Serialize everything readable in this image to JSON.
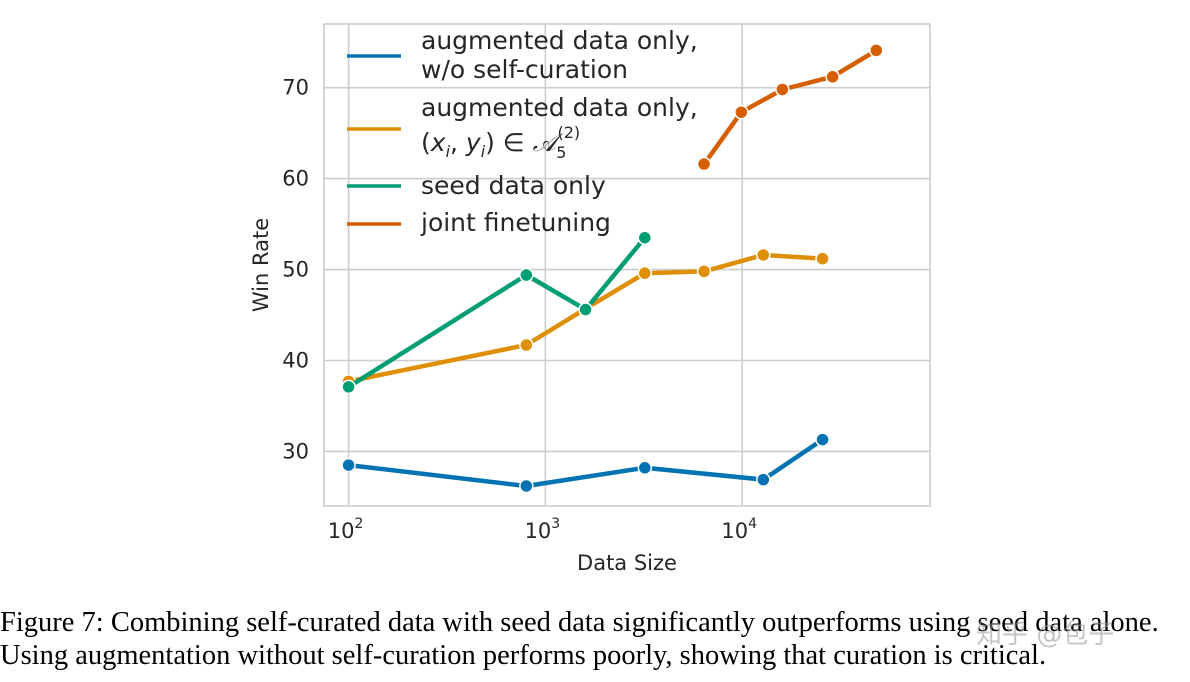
{
  "chart_data": {
    "type": "line",
    "xlabel": "Data Size",
    "ylabel": "Win Rate",
    "xscale": "log",
    "xlim": [
      75,
      90000
    ],
    "ylim": [
      24,
      77
    ],
    "xticks": [
      {
        "value": 100,
        "base": "10",
        "exp": "2"
      },
      {
        "value": 1000,
        "base": "10",
        "exp": "3"
      },
      {
        "value": 10000,
        "base": "10",
        "exp": "4"
      }
    ],
    "yticks": [
      30,
      40,
      50,
      60,
      70
    ],
    "grid": true,
    "legend_position": "top-left",
    "series": [
      {
        "name": "augmented data only, w/o self-curation",
        "legend_lines": [
          "augmented data only,",
          "w/o self-curation"
        ],
        "color": "#0173b2",
        "x": [
          100,
          800,
          3200,
          12800,
          25600
        ],
        "y": [
          28.5,
          26.2,
          28.2,
          26.9,
          31.3
        ]
      },
      {
        "name": "augmented data only, (x_i, y_i) ∈ A_5^(2)",
        "legend_lines": [
          "augmented data only,"
        ],
        "legend_math": {
          "open": "(",
          "x": "x",
          "i1": "i",
          "comma": ", ",
          "y": "y",
          "i2": "i",
          "close": ") ∈ ",
          "A": "𝒜",
          "sub": "5",
          "sup": "(2)"
        },
        "color": "#de8f05",
        "x": [
          100,
          800,
          1600,
          3200,
          6400,
          12800,
          25600
        ],
        "y": [
          37.7,
          41.7,
          45.7,
          49.6,
          49.8,
          51.6,
          51.2
        ]
      },
      {
        "name": "seed data only",
        "legend_lines": [
          "seed data only"
        ],
        "color": "#029e73",
        "x": [
          100,
          800,
          1600,
          3200
        ],
        "y": [
          37.1,
          49.4,
          45.6,
          53.5
        ]
      },
      {
        "name": "joint finetuning",
        "legend_lines": [
          "joint finetuning"
        ],
        "color": "#d55e00",
        "x": [
          6400,
          9900,
          16000,
          28800,
          48000
        ],
        "y": [
          61.6,
          67.3,
          69.8,
          71.2,
          74.1
        ]
      }
    ]
  },
  "caption": {
    "line1": "Figure 7: Combining self-curated data with seed data significantly outperforms using seed data alone.",
    "line2": "Using augmentation without self-curation performs poorly, showing that curation is critical."
  },
  "watermark": "知乎 @包子"
}
